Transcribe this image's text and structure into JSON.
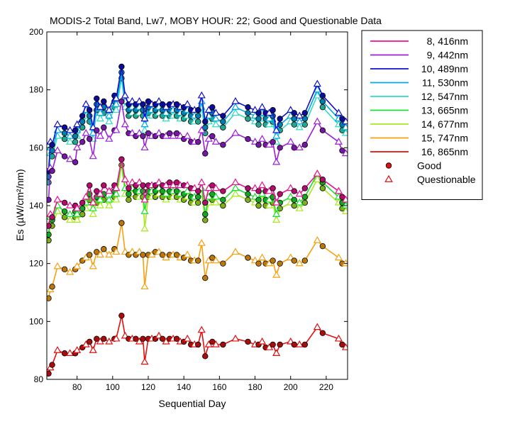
{
  "chart_data": {
    "type": "line",
    "title": "MODIS-2 Total Band,  Lw7, MOBY HOUR: 22;  Good and Questionable Data",
    "xlabel": "Sequential Day",
    "ylabel": "Es (µW/cm²/nm)",
    "xlim": [
      63,
      232
    ],
    "ylim": [
      80,
      200
    ],
    "xticks": [
      80,
      100,
      120,
      140,
      160,
      180,
      200,
      220
    ],
    "yticks": [
      80,
      100,
      120,
      140,
      160,
      180,
      200
    ],
    "grid": false,
    "legend_position": "right",
    "marker_legend": [
      {
        "label": "Good",
        "marker": "circle"
      },
      {
        "label": "Questionable",
        "marker": "triangle"
      }
    ],
    "x": [
      64,
      65,
      66,
      69,
      73,
      76,
      79,
      80,
      83,
      85,
      87,
      89,
      91,
      93,
      95,
      98,
      101,
      102,
      105,
      107,
      109,
      111,
      113,
      115,
      117,
      118,
      120,
      122,
      124,
      126,
      128,
      130,
      132,
      134,
      136,
      138,
      140,
      142,
      144,
      146,
      148,
      150,
      152,
      154,
      156,
      158,
      162,
      169,
      176,
      180,
      182,
      184,
      186,
      188,
      190,
      192,
      194,
      200,
      202,
      205,
      208,
      215,
      218,
      227,
      229,
      231
    ],
    "series": [
      {
        "name": "8, 416nm",
        "color": "#ee1090",
        "values": [
          133,
          137,
          136,
          142,
          141,
          140,
          140,
          139,
          141,
          143,
          147,
          141,
          145,
          144,
          147,
          145,
          147,
          146,
          156,
          149,
          146,
          148,
          147,
          148,
          147,
          142,
          147,
          147,
          147,
          148,
          147,
          147,
          148,
          147,
          148,
          147,
          147,
          147,
          146,
          146,
          145,
          148,
          141,
          146,
          147,
          146,
          145,
          148,
          146,
          146,
          145,
          147,
          145,
          145,
          146,
          141,
          144,
          146,
          145,
          144,
          146,
          151,
          149,
          145,
          143,
          142
        ]
      },
      {
        "name": "9, 442nm",
        "color": "#9b1fd8",
        "values": [
          142,
          153,
          152,
          159,
          157,
          156,
          155,
          160,
          162,
          165,
          163,
          157,
          166,
          164,
          167,
          163,
          166,
          166,
          176,
          168,
          165,
          165,
          164,
          165,
          164,
          160,
          165,
          164,
          164,
          165,
          164,
          164,
          165,
          164,
          165,
          164,
          163,
          164,
          162,
          162,
          162,
          166,
          158,
          163,
          164,
          162,
          161,
          165,
          163,
          162,
          161,
          163,
          161,
          161,
          162,
          155,
          160,
          162,
          160,
          160,
          161,
          169,
          166,
          162,
          159,
          158
        ]
      },
      {
        "name": "10, 489nm",
        "color": "#1010cc",
        "values": [
          152,
          162,
          161,
          168,
          167,
          166,
          166,
          168,
          171,
          175,
          173,
          167,
          177,
          174,
          176,
          173,
          178,
          177,
          188,
          178,
          175,
          176,
          175,
          176,
          175,
          170,
          176,
          175,
          175,
          176,
          175,
          174,
          175,
          175,
          175,
          174,
          174,
          175,
          173,
          173,
          173,
          178,
          169,
          173,
          174,
          172,
          171,
          176,
          174,
          173,
          172,
          174,
          172,
          172,
          173,
          166,
          170,
          173,
          172,
          171,
          172,
          182,
          178,
          172,
          170,
          169
        ]
      },
      {
        "name": "11, 530nm",
        "color": "#00a8e8",
        "values": [
          150,
          160,
          159,
          166,
          165,
          164,
          164,
          166,
          169,
          173,
          171,
          165,
          175,
          172,
          174,
          171,
          176,
          175,
          186,
          176,
          173,
          174,
          173,
          174,
          173,
          168,
          174,
          173,
          173,
          174,
          173,
          172,
          173,
          173,
          173,
          172,
          172,
          173,
          171,
          171,
          171,
          176,
          167,
          171,
          172,
          170,
          169,
          174,
          172,
          171,
          170,
          172,
          170,
          170,
          171,
          164,
          168,
          171,
          170,
          169,
          170,
          180,
          176,
          170,
          168,
          167
        ]
      },
      {
        "name": "12, 547nm",
        "color": "#30dcc0",
        "values": [
          148,
          158,
          157,
          164,
          163,
          162,
          162,
          164,
          167,
          171,
          169,
          163,
          173,
          170,
          172,
          169,
          174,
          173,
          184,
          174,
          171,
          172,
          171,
          172,
          171,
          166,
          172,
          171,
          171,
          172,
          171,
          170,
          171,
          171,
          171,
          170,
          170,
          171,
          169,
          169,
          169,
          174,
          165,
          169,
          170,
          168,
          167,
          172,
          170,
          169,
          168,
          170,
          168,
          168,
          169,
          162,
          166,
          169,
          168,
          167,
          168,
          178,
          174,
          168,
          166,
          165
        ]
      },
      {
        "name": "13, 665nm",
        "color": "#18e030",
        "values": [
          130,
          136,
          135,
          140,
          138,
          137,
          138,
          137,
          139,
          141,
          144,
          139,
          143,
          142,
          144,
          142,
          145,
          144,
          156,
          146,
          144,
          146,
          145,
          145,
          145,
          138,
          145,
          145,
          145,
          146,
          145,
          144,
          145,
          145,
          145,
          144,
          144,
          145,
          143,
          143,
          143,
          146,
          137,
          143,
          144,
          143,
          142,
          146,
          144,
          143,
          142,
          144,
          142,
          142,
          143,
          137,
          141,
          143,
          142,
          141,
          143,
          151,
          148,
          143,
          141,
          140
        ]
      },
      {
        "name": "14, 677nm",
        "color": "#a8e820",
        "values": [
          128,
          134,
          133,
          138,
          136,
          135,
          136,
          135,
          137,
          139,
          142,
          137,
          141,
          140,
          142,
          140,
          143,
          142,
          154,
          144,
          142,
          144,
          143,
          143,
          143,
          132,
          143,
          143,
          143,
          144,
          143,
          142,
          143,
          143,
          143,
          142,
          142,
          143,
          141,
          141,
          141,
          144,
          135,
          141,
          142,
          141,
          140,
          144,
          142,
          141,
          140,
          142,
          140,
          140,
          141,
          135,
          139,
          141,
          140,
          139,
          141,
          149,
          146,
          141,
          139,
          138
        ]
      },
      {
        "name": "15, 747nm",
        "color": "#f8a010",
        "values": [
          108,
          111,
          112,
          119,
          118,
          117,
          118,
          119,
          121,
          122,
          123,
          119,
          124,
          123,
          125,
          123,
          125,
          124,
          134,
          124,
          123,
          124,
          123,
          124,
          123,
          112,
          123,
          123,
          124,
          124,
          123,
          122,
          123,
          123,
          123,
          122,
          122,
          123,
          121,
          121,
          121,
          127,
          115,
          121,
          122,
          121,
          120,
          124,
          122,
          121,
          120,
          122,
          120,
          120,
          121,
          116,
          120,
          122,
          121,
          120,
          121,
          128,
          126,
          122,
          120,
          120
        ]
      },
      {
        "name": "16, 865nm",
        "color": "#e01010",
        "values": [
          82,
          84,
          85,
          90,
          89,
          89,
          89,
          90,
          91,
          92,
          93,
          90,
          94,
          93,
          94,
          93,
          94,
          94,
          102,
          95,
          94,
          94,
          94,
          93,
          94,
          86,
          94,
          94,
          94,
          95,
          94,
          93,
          94,
          94,
          94,
          93,
          93,
          94,
          92,
          92,
          92,
          97,
          88,
          92,
          93,
          92,
          92,
          94,
          93,
          92,
          92,
          93,
          91,
          91,
          92,
          89,
          92,
          93,
          92,
          92,
          92,
          98,
          96,
          94,
          92,
          91
        ]
      }
    ]
  }
}
